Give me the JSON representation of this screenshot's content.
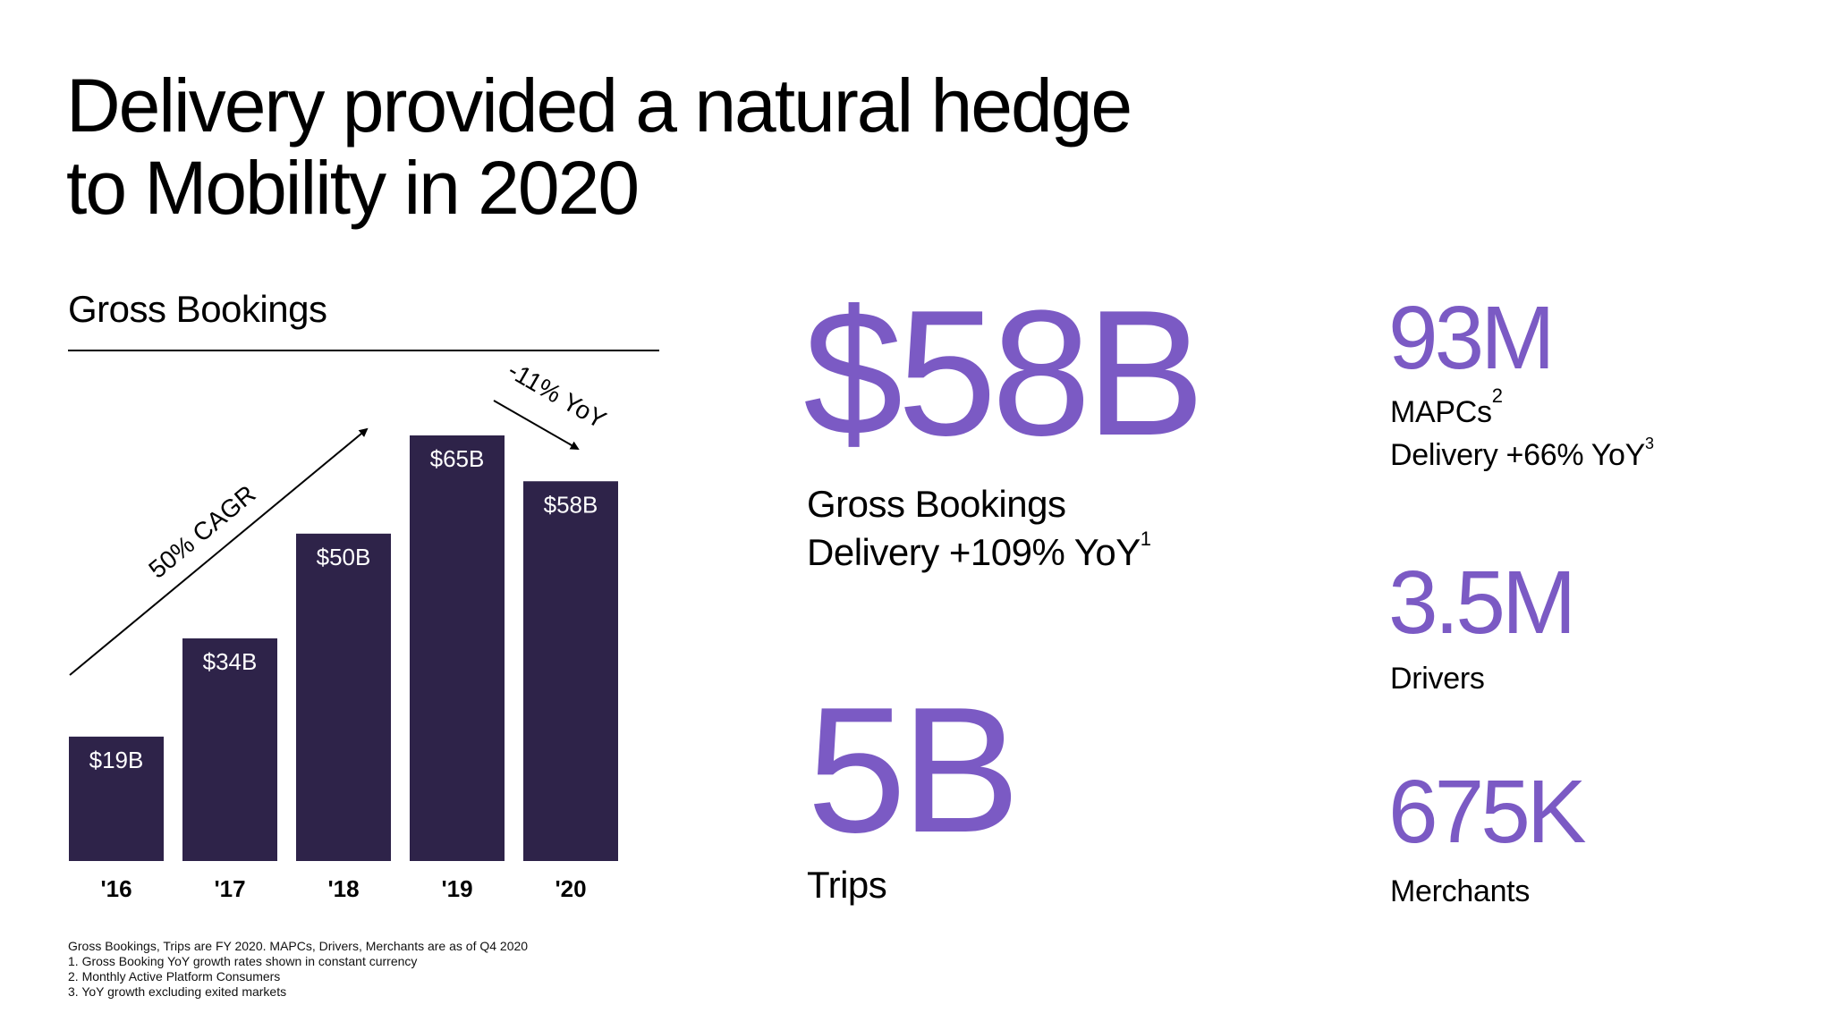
{
  "title": {
    "line1": "Delivery provided a natural hedge",
    "line2": "to Mobility in 2020"
  },
  "colors": {
    "bar": "#2e2349",
    "accent": "#7b5ac4",
    "text": "#000000"
  },
  "chart_data": {
    "type": "bar",
    "title": "Gross Bookings",
    "categories": [
      "'16",
      "'17",
      "'18",
      "'19",
      "'20"
    ],
    "values": [
      19,
      34,
      50,
      65,
      58
    ],
    "value_labels": [
      "$19B",
      "$34B",
      "$50B",
      "$65B",
      "$58B"
    ],
    "unit": "$B",
    "ylim": [
      0,
      65
    ],
    "xlabel": "",
    "ylabel": "",
    "grid": false,
    "annotations": [
      {
        "text": "50% CAGR",
        "type": "arrow",
        "from_category": "'16",
        "to_category": "'19"
      },
      {
        "text": "-11% YoY",
        "type": "arrow",
        "from_category": "'19",
        "to_category": "'20"
      }
    ]
  },
  "stats": {
    "gross_bookings": {
      "value": "$58B",
      "label": "Gross Bookings",
      "sub": "Delivery +109% YoY",
      "sub_note": "1"
    },
    "trips": {
      "value": "5B",
      "label": "Trips"
    },
    "mapcs": {
      "value": "93M",
      "label": "MAPCs",
      "label_note": "2",
      "sub": "Delivery +66% YoY",
      "sub_note": "3"
    },
    "drivers": {
      "value": "3.5M",
      "label": "Drivers"
    },
    "merchants": {
      "value": "675K",
      "label": "Merchants"
    }
  },
  "footnotes": {
    "intro": "Gross Bookings, Trips are FY 2020. MAPCs, Drivers, Merchants are as of Q4 2020",
    "note1": "1.  Gross Booking YoY growth rates shown in constant currency",
    "note2": "2.  Monthly Active Platform Consumers",
    "note3": "3.  YoY growth excluding exited markets"
  }
}
